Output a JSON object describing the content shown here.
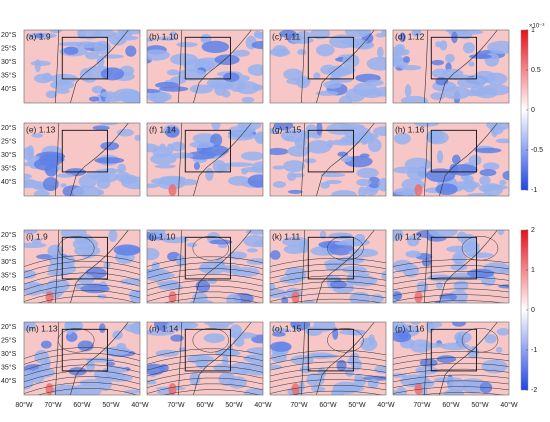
{
  "panels": [
    {
      "label": "(a) 1.9"
    },
    {
      "label": "(b) 1.10"
    },
    {
      "label": "(c) 1.11"
    },
    {
      "label": "(d) 1.12"
    },
    {
      "label": "(e) 1.13"
    },
    {
      "label": "(f) 1.14"
    },
    {
      "label": "(g) 1.15"
    },
    {
      "label": "(h) 1.16"
    },
    {
      "label": "(i) 1.9"
    },
    {
      "label": "(j) 1.10"
    },
    {
      "label": "(k) 1.11"
    },
    {
      "label": "(l) 1.12"
    },
    {
      "label": "(m) 1.13"
    },
    {
      "label": "(n) 1.14"
    },
    {
      "label": "(o) 1.15"
    },
    {
      "label": "(p) 1.16"
    }
  ],
  "latitude_labels": [
    "20°S",
    "25°S",
    "30°S",
    "35°S",
    "40°S"
  ],
  "longitude_labels": [
    "80°W",
    "70°W",
    "60°W",
    "50°W",
    "40°W"
  ],
  "colorbars": [
    {
      "scale": "×10⁻³",
      "ticks": [
        "1",
        "0.5",
        "0",
        "-0.5",
        "-1"
      ]
    },
    {
      "ticks": [
        "2",
        "1",
        "0",
        "-1",
        "-2"
      ]
    }
  ]
}
